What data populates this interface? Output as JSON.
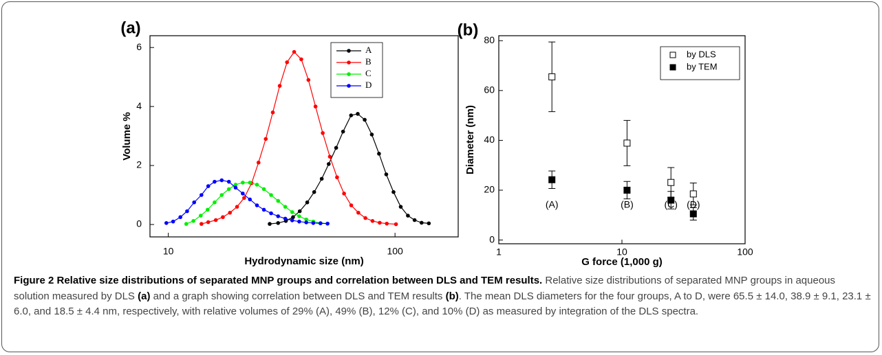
{
  "chart_data": [
    {
      "type": "line",
      "panel_label": "(a)",
      "xlabel": "Hydrodynamic size (nm)",
      "ylabel": "Volume %",
      "xscale": "log",
      "xlim": [
        8.3,
        190
      ],
      "ylim": [
        -0.42,
        6.4
      ],
      "xticks": [
        10,
        100
      ],
      "yticks": [
        0,
        2,
        4,
        6
      ],
      "legend": "upper right",
      "series": [
        {
          "name": "A",
          "color": "#000000",
          "x": [
            28,
            30.5,
            33,
            35.5,
            38,
            41,
            44,
            47.5,
            51,
            55,
            59,
            64,
            68.5,
            73.5,
            79,
            85,
            91.5,
            98.5,
            106,
            114,
            122,
            131,
            141
          ],
          "values": [
            0.02,
            0.05,
            0.12,
            0.25,
            0.45,
            0.75,
            1.1,
            1.55,
            2.05,
            2.6,
            3.15,
            3.7,
            3.75,
            3.55,
            3.05,
            2.4,
            1.7,
            1.1,
            0.6,
            0.3,
            0.15,
            0.06,
            0.04
          ]
        },
        {
          "name": "B",
          "color": "#ff0000",
          "x": [
            14,
            15,
            16.2,
            17.4,
            18.7,
            20.1,
            21.6,
            23.3,
            25,
            26.9,
            28.9,
            31,
            33.4,
            35.9,
            38.6,
            41.5,
            44.6,
            48,
            51.6,
            55.5,
            59.6,
            64.1,
            68.9,
            74,
            79.6,
            85.6,
            92,
            101
          ],
          "values": [
            0.02,
            0.08,
            0.15,
            0.25,
            0.4,
            0.6,
            0.9,
            1.4,
            2.1,
            2.9,
            3.8,
            4.7,
            5.5,
            5.85,
            5.6,
            4.9,
            4.0,
            3.1,
            2.3,
            1.6,
            1.05,
            0.65,
            0.4,
            0.22,
            0.12,
            0.06,
            0.03,
            0.01
          ]
        },
        {
          "name": "C",
          "color": "#00ee00",
          "x": [
            12,
            12.9,
            13.9,
            14.9,
            16,
            17.2,
            18.5,
            19.8,
            21.3,
            22.9,
            24.6,
            26.4,
            28.4,
            30.5,
            32.8,
            35.2,
            37.8,
            40.6,
            43.6,
            46.9,
            50.4
          ],
          "values": [
            0.02,
            0.12,
            0.3,
            0.5,
            0.75,
            1.0,
            1.2,
            1.35,
            1.42,
            1.42,
            1.35,
            1.2,
            1.0,
            0.8,
            0.6,
            0.42,
            0.28,
            0.17,
            0.1,
            0.05,
            0.03
          ]
        },
        {
          "name": "D",
          "color": "#0000ff",
          "x": [
            9.8,
            10.5,
            11.3,
            12.1,
            13,
            14,
            15,
            16,
            17.2,
            18.5,
            19.8,
            21.3,
            22.9,
            24.6,
            26.4,
            28.4,
            30.5,
            32.8,
            35.2,
            37.8,
            40.6,
            43.6,
            46.9,
            50.4
          ],
          "values": [
            0.05,
            0.1,
            0.25,
            0.45,
            0.75,
            1.0,
            1.3,
            1.45,
            1.5,
            1.45,
            1.25,
            1.05,
            0.85,
            0.65,
            0.5,
            0.38,
            0.28,
            0.2,
            0.14,
            0.1,
            0.07,
            0.05,
            0.04,
            0.03
          ]
        }
      ]
    },
    {
      "type": "errorbar",
      "panel_label": "(b)",
      "xlabel": "G force  (1,000 g)",
      "ylabel": "Diameter  (nm)",
      "xscale": "log",
      "xlim": [
        1,
        100
      ],
      "ylim": [
        -1.5,
        82
      ],
      "xticks": [
        1,
        10,
        100
      ],
      "yticks": [
        0,
        20,
        40,
        60,
        80
      ],
      "legend": "upper right",
      "x": [
        2.7,
        11,
        25,
        38
      ],
      "annotations": [
        "(A)",
        "(B)",
        "(C)",
        "(D)"
      ],
      "annotation_y": 14,
      "series": [
        {
          "name": "by DLS",
          "color": "#000000",
          "marker": "open-square",
          "values": [
            65.5,
            38.9,
            23.1,
            18.5
          ],
          "errors": [
            14.0,
            9.1,
            6.0,
            4.4
          ]
        },
        {
          "name": "by TEM",
          "color": "#000000",
          "marker": "square",
          "values": [
            24.2,
            20,
            16,
            10.5
          ],
          "errors": [
            3.5,
            3.5,
            3.5,
            2.5
          ]
        }
      ]
    }
  ],
  "caption": {
    "title": "Figure 2 Relative size distributions of separated MNP groups and correlation between DLS and TEM results.",
    "body": [
      " Relative size distributions of separated MNP groups in aqueous solution measured by DLS ",
      "(a)",
      " and a graph showing correlation between DLS and TEM results ",
      "(b)",
      ". The mean DLS diameters for the four groups, A to D, were 65.5 ± 14.0, 38.9 ± 9.1, 23.1 ± 6.0, and 18.5 ± 4.4 nm, respectively, with relative volumes of 29% (A), 49% (B), 12% (C), and 10% (D) as measured by integration of the DLS spectra."
    ]
  }
}
